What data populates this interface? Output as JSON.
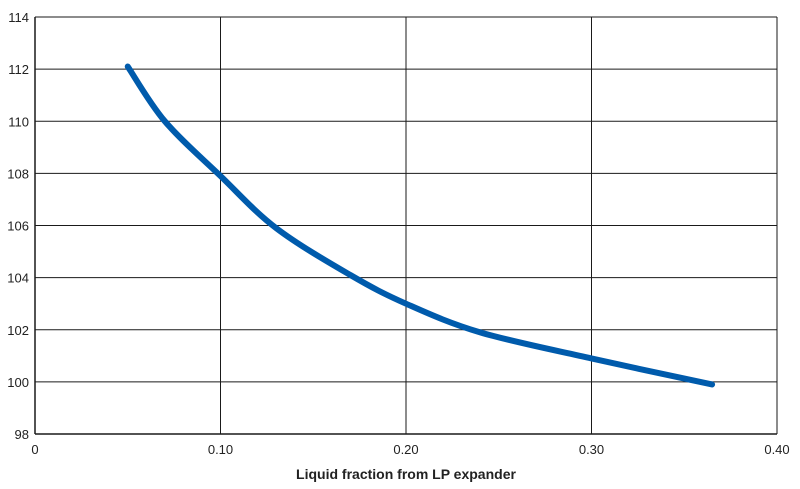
{
  "chart_data": {
    "type": "line",
    "title": "",
    "xlabel": "Liquid fraction from LP expander",
    "ylabel": "",
    "xlim": [
      0,
      0.4
    ],
    "ylim": [
      98,
      114
    ],
    "x_ticks": [
      0,
      0.1,
      0.2,
      0.3,
      0.4
    ],
    "x_tick_labels": [
      "0",
      "0.10",
      "0.20",
      "0.30",
      "0.40"
    ],
    "y_ticks": [
      98,
      100,
      102,
      104,
      106,
      108,
      110,
      112,
      114
    ],
    "y_tick_labels": [
      "98",
      "100",
      "102",
      "104",
      "106",
      "108",
      "110",
      "112",
      "114"
    ],
    "grid": true,
    "legend": "none",
    "colors": {
      "line": "#005bac",
      "grid": "#1a1a1a",
      "axis": "#1a1a1a"
    },
    "series": [
      {
        "x": [
          0.05,
          0.07,
          0.1,
          0.13,
          0.17,
          0.2,
          0.24,
          0.3,
          0.365
        ],
        "y": [
          112.1,
          110.0,
          107.9,
          105.9,
          104.1,
          103.0,
          101.9,
          100.9,
          99.9
        ]
      }
    ]
  }
}
